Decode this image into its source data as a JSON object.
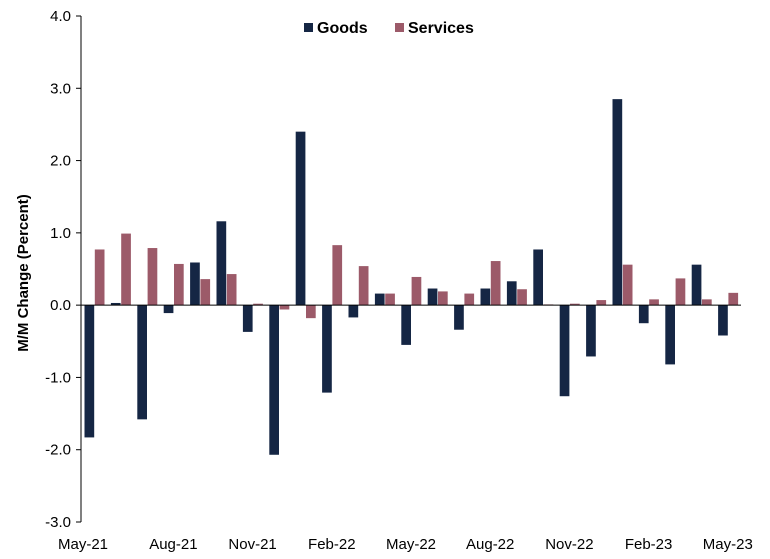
{
  "chart_data": {
    "type": "bar",
    "title": "",
    "xlabel": "",
    "ylabel": "M/M Change (Percent)",
    "ylim": [
      -3.0,
      4.0
    ],
    "yticks": [
      "4.0",
      "3.0",
      "2.0",
      "1.0",
      "0.0",
      "-1.0",
      "-2.0",
      "-3.0"
    ],
    "ytick_values": [
      4,
      3,
      2,
      1,
      0,
      -1,
      -2,
      -3
    ],
    "categories": [
      "May-21",
      "Jun-21",
      "Jul-21",
      "Aug-21",
      "Sep-21",
      "Oct-21",
      "Nov-21",
      "Dec-21",
      "Jan-22",
      "Feb-22",
      "Mar-22",
      "Apr-22",
      "May-22",
      "Jun-22",
      "Jul-22",
      "Aug-22",
      "Sep-22",
      "Oct-22",
      "Nov-22",
      "Dec-22",
      "Jan-23",
      "Feb-23",
      "Mar-23",
      "Apr-23",
      "May-23"
    ],
    "xtick_labels": [
      "May-21",
      "Aug-21",
      "Nov-21",
      "Feb-22",
      "May-22",
      "Aug-22",
      "Nov-22",
      "Feb-23",
      "May-23"
    ],
    "xtick_every": 3,
    "legend_position": "top-center",
    "series": [
      {
        "name": "Goods",
        "color": "#152644",
        "values": [
          -1.83,
          0.03,
          -1.58,
          -0.11,
          0.59,
          1.16,
          -0.37,
          -2.07,
          2.4,
          -1.21,
          -0.17,
          0.16,
          -0.55,
          0.23,
          -0.34,
          0.23,
          0.33,
          0.77,
          -1.26,
          -0.71,
          2.85,
          -0.25,
          -0.82,
          0.56,
          -0.42
        ]
      },
      {
        "name": "Services",
        "color": "#9c5a69",
        "values": [
          0.77,
          0.99,
          0.79,
          0.57,
          0.36,
          0.43,
          0.02,
          -0.06,
          -0.18,
          0.83,
          0.54,
          0.16,
          0.39,
          0.19,
          0.16,
          0.61,
          0.22,
          0.01,
          0.02,
          0.07,
          0.56,
          0.08,
          0.37,
          0.08,
          0.17
        ]
      }
    ]
  }
}
